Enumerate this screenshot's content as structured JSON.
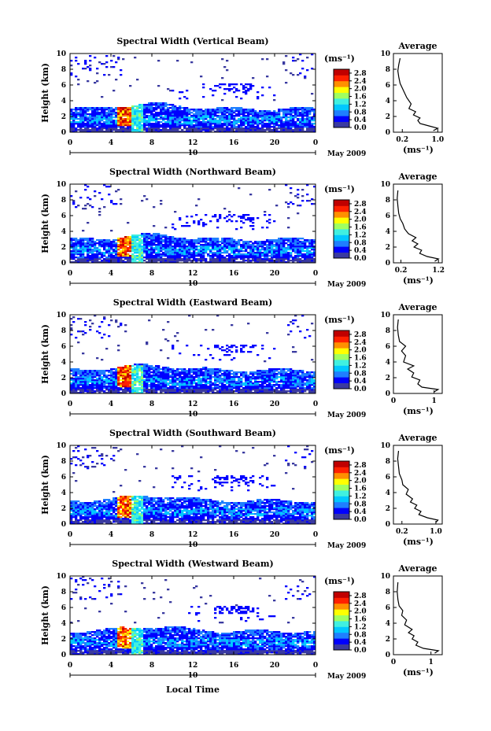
{
  "figure": {
    "xlabel": "Local Time",
    "ylabel": "Height (km)",
    "date_label": "May 2009",
    "day_label": "10",
    "unit_label": "(ms⁻¹)",
    "avg_title": "Average",
    "avg_xlabel": "(ms⁻¹)",
    "colorbar_ticks": [
      "2.8",
      "2.4",
      "2.0",
      "1.6",
      "1.2",
      "0.8",
      "0.4",
      "0.0"
    ],
    "colormap": [
      "#3a3aa0",
      "#0000ff",
      "#1f7fff",
      "#00c8ff",
      "#40f0e0",
      "#a0ff60",
      "#ffff00",
      "#ff9000",
      "#ff2000",
      "#c00000"
    ]
  },
  "chart_data": [
    {
      "type": "heatmap",
      "title": "Spectral Width (Vertical Beam)",
      "x_ticks": [
        "0",
        "4",
        "8",
        "12",
        "16",
        "20",
        "0"
      ],
      "y_ticks": [
        "0",
        "2",
        "4",
        "6",
        "8",
        "10"
      ],
      "xlim": [
        0,
        24
      ],
      "ylim": [
        0,
        10
      ],
      "zlim": [
        0,
        3.0
      ],
      "average": {
        "x_ticks": [
          "0.2",
          "1.0"
        ],
        "xlim": [
          0,
          1.1
        ],
        "profile": [
          [
            0.9,
            0.2
          ],
          [
            1.0,
            0.5
          ],
          [
            0.8,
            0.8
          ],
          [
            0.6,
            1.1
          ],
          [
            0.55,
            1.5
          ],
          [
            0.6,
            1.8
          ],
          [
            0.45,
            2.2
          ],
          [
            0.5,
            2.6
          ],
          [
            0.35,
            3.0
          ],
          [
            0.4,
            3.6
          ],
          [
            0.3,
            4.4
          ],
          [
            0.25,
            5.0
          ],
          [
            0.2,
            5.6
          ],
          [
            0.15,
            6.2
          ],
          [
            0.12,
            7.0
          ],
          [
            0.1,
            7.8
          ],
          [
            0.12,
            8.6
          ],
          [
            0.15,
            9.4
          ]
        ]
      }
    },
    {
      "type": "heatmap",
      "title": "Spectral Width (Northward Beam)",
      "x_ticks": [
        "0",
        "4",
        "8",
        "12",
        "16",
        "20",
        "0"
      ],
      "y_ticks": [
        "0",
        "2",
        "4",
        "6",
        "8",
        "10"
      ],
      "xlim": [
        0,
        24
      ],
      "ylim": [
        0,
        10
      ],
      "zlim": [
        0,
        3.0
      ],
      "average": {
        "x_ticks": [
          "0.2",
          "1.2"
        ],
        "xlim": [
          0,
          1.3
        ],
        "profile": [
          [
            1.1,
            0.2
          ],
          [
            1.2,
            0.5
          ],
          [
            0.9,
            0.8
          ],
          [
            0.7,
            1.2
          ],
          [
            0.75,
            1.6
          ],
          [
            0.55,
            2.0
          ],
          [
            0.65,
            2.4
          ],
          [
            0.5,
            2.8
          ],
          [
            0.6,
            3.2
          ],
          [
            0.4,
            3.7
          ],
          [
            0.3,
            4.3
          ],
          [
            0.25,
            5.0
          ],
          [
            0.18,
            5.6
          ],
          [
            0.14,
            6.3
          ],
          [
            0.12,
            7.2
          ],
          [
            0.1,
            8.2
          ],
          [
            0.12,
            9.2
          ]
        ]
      }
    },
    {
      "type": "heatmap",
      "title": "Spectral Width (Eastward Beam)",
      "x_ticks": [
        "0",
        "4",
        "8",
        "12",
        "16",
        "20",
        "0"
      ],
      "y_ticks": [
        "0",
        "2",
        "4",
        "6",
        "8",
        "10"
      ],
      "xlim": [
        0,
        24
      ],
      "ylim": [
        0,
        10
      ],
      "zlim": [
        0,
        3.0
      ],
      "average": {
        "x_ticks": [
          "0",
          "1"
        ],
        "xlim": [
          0,
          1.2
        ],
        "profile": [
          [
            1.0,
            0.2
          ],
          [
            1.1,
            0.5
          ],
          [
            0.7,
            0.8
          ],
          [
            0.6,
            1.2
          ],
          [
            0.65,
            1.7
          ],
          [
            0.45,
            2.1
          ],
          [
            0.5,
            2.6
          ],
          [
            0.35,
            3.1
          ],
          [
            0.5,
            3.5
          ],
          [
            0.25,
            4.0
          ],
          [
            0.3,
            4.8
          ],
          [
            0.2,
            5.4
          ],
          [
            0.3,
            6.0
          ],
          [
            0.15,
            6.6
          ],
          [
            0.12,
            7.4
          ],
          [
            0.1,
            8.4
          ],
          [
            0.12,
            9.4
          ]
        ]
      }
    },
    {
      "type": "heatmap",
      "title": "Spectral Width (Southward Beam)",
      "x_ticks": [
        "0",
        "4",
        "8",
        "12",
        "16",
        "20",
        "0"
      ],
      "y_ticks": [
        "0",
        "2",
        "4",
        "6",
        "8",
        "10"
      ],
      "xlim": [
        0,
        24
      ],
      "ylim": [
        0,
        10
      ],
      "zlim": [
        0,
        3.0
      ],
      "average": {
        "x_ticks": [
          "0.2",
          "1.0"
        ],
        "xlim": [
          0,
          1.15
        ],
        "profile": [
          [
            1.0,
            0.2
          ],
          [
            1.05,
            0.5
          ],
          [
            0.8,
            0.8
          ],
          [
            0.6,
            1.2
          ],
          [
            0.65,
            1.6
          ],
          [
            0.5,
            2.0
          ],
          [
            0.55,
            2.4
          ],
          [
            0.4,
            2.8
          ],
          [
            0.45,
            3.2
          ],
          [
            0.3,
            3.8
          ],
          [
            0.35,
            4.4
          ],
          [
            0.22,
            5.0
          ],
          [
            0.2,
            5.6
          ],
          [
            0.14,
            6.4
          ],
          [
            0.12,
            7.3
          ],
          [
            0.1,
            8.3
          ],
          [
            0.12,
            9.3
          ]
        ]
      }
    },
    {
      "type": "heatmap",
      "title": "Spectral Width (Westward Beam)",
      "x_ticks": [
        "0",
        "4",
        "8",
        "12",
        "16",
        "20",
        "0"
      ],
      "y_ticks": [
        "0",
        "2",
        "4",
        "6",
        "8",
        "10"
      ],
      "xlim": [
        0,
        24
      ],
      "ylim": [
        0,
        10
      ],
      "zlim": [
        0,
        3.0
      ],
      "average": {
        "x_ticks": [
          "0",
          "1"
        ],
        "xlim": [
          0,
          1.3
        ],
        "profile": [
          [
            1.1,
            0.2
          ],
          [
            1.2,
            0.5
          ],
          [
            0.8,
            0.8
          ],
          [
            0.6,
            1.2
          ],
          [
            0.65,
            1.6
          ],
          [
            0.5,
            2.0
          ],
          [
            0.55,
            2.4
          ],
          [
            0.4,
            2.8
          ],
          [
            0.5,
            3.2
          ],
          [
            0.3,
            3.8
          ],
          [
            0.35,
            4.4
          ],
          [
            0.22,
            5.0
          ],
          [
            0.25,
            5.6
          ],
          [
            0.15,
            6.2
          ],
          [
            0.12,
            7.0
          ],
          [
            0.1,
            8.0
          ],
          [
            0.12,
            9.2
          ]
        ]
      }
    }
  ]
}
